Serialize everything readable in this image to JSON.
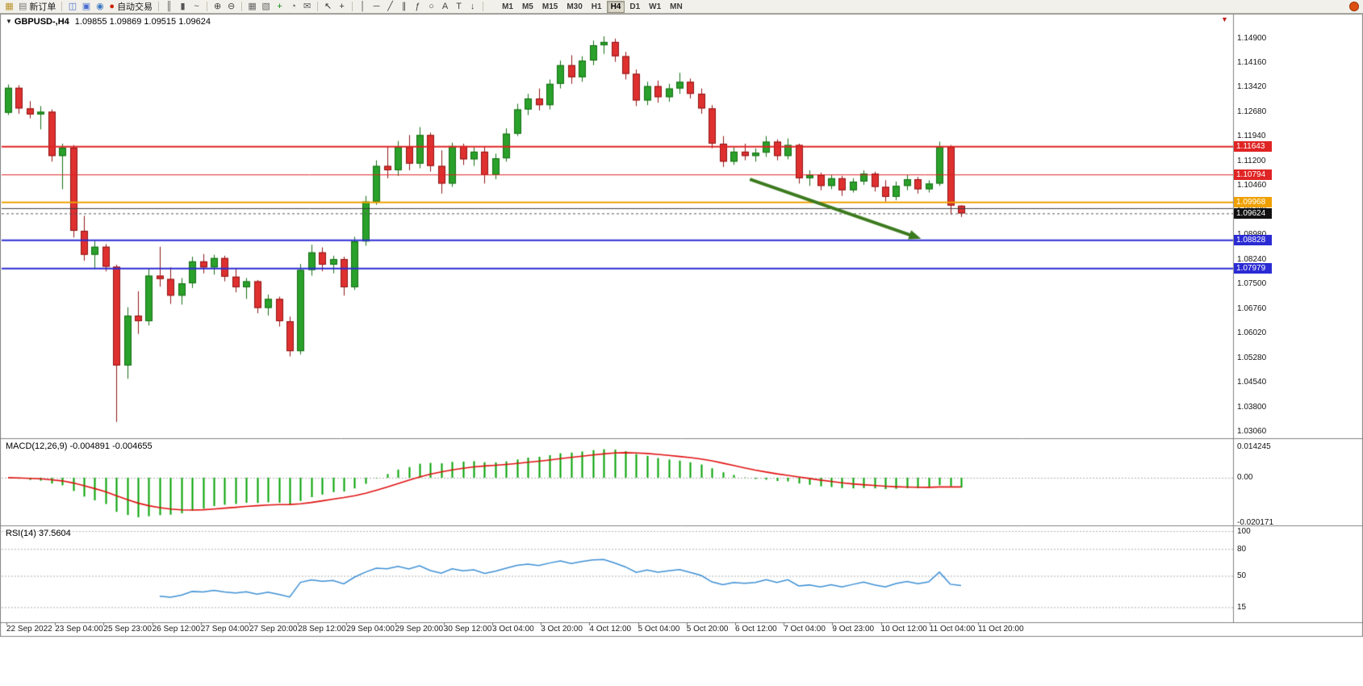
{
  "toolbar": {
    "items": [
      {
        "name": "new-chart-window-icon",
        "glyph": "▦",
        "color": "#b8922a"
      },
      {
        "name": "new-order-button",
        "glyph": "▤",
        "color": "#7a7a7a",
        "label": "新订单"
      },
      {
        "name": "sep"
      },
      {
        "name": "chart-windows-icon",
        "glyph": "◫",
        "color": "#4a6fd0"
      },
      {
        "name": "profiles-icon",
        "glyph": "▣",
        "color": "#4a6fd0"
      },
      {
        "name": "alerts-icon",
        "glyph": "◉",
        "color": "#3a78c0"
      },
      {
        "name": "autotrading-button",
        "glyph": "●",
        "color": "#cc2200",
        "label": "自动交易"
      },
      {
        "name": "sep"
      },
      {
        "name": "bar-chart-icon",
        "glyph": "║",
        "color": "#555555"
      },
      {
        "name": "candlestick-chart-icon",
        "glyph": "▮",
        "color": "#555555"
      },
      {
        "name": "line-chart-icon",
        "glyph": "~",
        "color": "#555555"
      },
      {
        "name": "sep"
      },
      {
        "name": "zoom-in-icon",
        "glyph": "⊕",
        "color": "#444444"
      },
      {
        "name": "zoom-out-icon",
        "glyph": "⊖",
        "color": "#444444"
      },
      {
        "name": "sep"
      },
      {
        "name": "tile-windows-icon",
        "glyph": "▦",
        "color": "#666666"
      },
      {
        "name": "cascade-windows-icon",
        "glyph": "▧",
        "color": "#666666"
      },
      {
        "name": "indicators-icon",
        "glyph": "+",
        "color": "#0a8a0a"
      },
      {
        "name": "periods-icon",
        "glyph": "◔",
        "color": "#555555"
      },
      {
        "name": "templates-icon",
        "glyph": "✉",
        "color": "#555555"
      },
      {
        "name": "sep"
      },
      {
        "name": "cursor-icon",
        "glyph": "↖",
        "color": "#333333"
      },
      {
        "name": "crosshair-icon",
        "glyph": "+",
        "color": "#333333"
      },
      {
        "name": "sep"
      },
      {
        "name": "vertical-line-icon",
        "glyph": "│",
        "color": "#444444"
      },
      {
        "name": "horizontal-line-icon",
        "glyph": "─",
        "color": "#444444"
      },
      {
        "name": "trendline-icon",
        "glyph": "╱",
        "color": "#444444"
      },
      {
        "name": "channel-icon",
        "glyph": "∥",
        "color": "#444444"
      },
      {
        "name": "fibonacci-icon",
        "glyph": "ƒ",
        "color": "#444444"
      },
      {
        "name": "shapes-icon",
        "glyph": "○",
        "color": "#444444"
      },
      {
        "name": "text-icon",
        "glyph": "A",
        "color": "#444444"
      },
      {
        "name": "label-icon",
        "glyph": "T",
        "color": "#444444"
      },
      {
        "name": "arrows-tool-icon",
        "glyph": "↓",
        "color": "#444444"
      },
      {
        "name": "sep"
      }
    ],
    "timeframes": [
      "M1",
      "M5",
      "M15",
      "M30",
      "H1",
      "H4",
      "D1",
      "W1",
      "MN"
    ],
    "active_timeframe": "H4"
  },
  "icons": {
    "symbol_menu": "▼",
    "shift_marker": "▼"
  },
  "main_chart": {
    "symbol": "GBPUSD-,H4",
    "quote": "1.09855 1.09869 1.09515 1.09624",
    "ohlc_current": {
      "open": "1.09855",
      "high": "1.09869",
      "low": "1.09515",
      "close": "1.09624"
    }
  },
  "price_axis": {
    "labels": [
      "1.14900",
      "1.14160",
      "1.13420",
      "1.12680",
      "1.11940",
      "1.11200",
      "1.10460",
      "1.09720",
      "1.08980",
      "1.08240",
      "1.07500",
      "1.06760",
      "1.06020",
      "1.05280",
      "1.04540",
      "1.03800",
      "1.03060"
    ]
  },
  "price_badges": [
    {
      "text": "1.11643",
      "color": "#e02424"
    },
    {
      "text": "1.10794",
      "color": "#e02424"
    },
    {
      "text": "1.09968",
      "color": "#efa000"
    },
    {
      "text": "1.09624",
      "color": "#111111"
    },
    {
      "text": "1.08828",
      "color": "#2b2bd4"
    },
    {
      "text": "1.07979",
      "color": "#2b2bd4"
    }
  ],
  "macd": {
    "title": "MACD(12,26,9) -0.004891 -0.004655",
    "value": "-0.004891",
    "signal_value": "-0.004655",
    "axis_labels": [
      "0.014245",
      "0.00",
      "-0.020171"
    ]
  },
  "rsi": {
    "title": "RSI(14) 37.5604",
    "value": "37.5604",
    "axis_labels": [
      "100",
      "80",
      "50",
      "15"
    ]
  },
  "time_axis": {
    "labels": [
      "22 Sep 2022",
      "23 Sep 04:00",
      "25 Sep 23:00",
      "26 Sep 12:00",
      "27 Sep 04:00",
      "27 Sep 20:00",
      "28 Sep 12:00",
      "29 Sep 04:00",
      "29 Sep 20:00",
      "30 Sep 12:00",
      "3 Oct 04:00",
      "3 Oct 20:00",
      "4 Oct 12:00",
      "5 Oct 04:00",
      "5 Oct 20:00",
      "6 Oct 12:00",
      "7 Oct 04:00",
      "9 Oct 23:00",
      "10 Oct 12:00",
      "11 Oct 04:00",
      "11 Oct 20:00"
    ]
  },
  "chart_data": {
    "type": "candlestick",
    "symbol": "GBPUSD",
    "timeframe": "H4",
    "ylim": [
      1.0306,
      1.149
    ],
    "y_tick_step": 0.0074,
    "up_color": "#2aa12a",
    "down_color": "#df3030",
    "up_border": "#156e15",
    "down_border": "#8f1414",
    "ohlc": [
      [
        1.1265,
        1.135,
        1.1258,
        1.134
      ],
      [
        1.134,
        1.1348,
        1.1262,
        1.1278
      ],
      [
        1.1278,
        1.13,
        1.1248,
        1.126
      ],
      [
        1.126,
        1.1285,
        1.1215,
        1.1268
      ],
      [
        1.1268,
        1.1275,
        1.1118,
        1.1135
      ],
      [
        1.1135,
        1.1172,
        1.1035,
        1.116
      ],
      [
        1.116,
        1.1168,
        1.089,
        1.091
      ],
      [
        1.091,
        1.0955,
        1.082,
        1.0838
      ],
      [
        1.0838,
        1.088,
        1.0795,
        1.0862
      ],
      [
        1.0862,
        1.087,
        1.0788,
        1.0802
      ],
      [
        1.0802,
        1.0808,
        1.0335,
        1.0505
      ],
      [
        1.0505,
        1.068,
        1.0465,
        1.0655
      ],
      [
        1.0655,
        1.0728,
        1.06,
        1.0638
      ],
      [
        1.0638,
        1.0795,
        1.0625,
        1.0775
      ],
      [
        1.0775,
        1.0862,
        1.0742,
        1.0765
      ],
      [
        1.0765,
        1.08,
        1.069,
        1.0715
      ],
      [
        1.0715,
        1.0768,
        1.0688,
        1.0752
      ],
      [
        1.0752,
        1.0832,
        1.0738,
        1.0818
      ],
      [
        1.0818,
        1.084,
        1.0782,
        1.08
      ],
      [
        1.08,
        1.0838,
        1.0778,
        1.0828
      ],
      [
        1.0828,
        1.0835,
        1.0758,
        1.0772
      ],
      [
        1.0772,
        1.0798,
        1.0725,
        1.074
      ],
      [
        1.074,
        1.0768,
        1.0705,
        1.0758
      ],
      [
        1.0758,
        1.0762,
        1.0662,
        1.0678
      ],
      [
        1.0678,
        1.0718,
        1.0655,
        1.0705
      ],
      [
        1.0705,
        1.0712,
        1.0622,
        1.0638
      ],
      [
        1.0638,
        1.0652,
        1.0532,
        1.0548
      ],
      [
        1.0548,
        1.081,
        1.0538,
        1.0792
      ],
      [
        1.0792,
        1.0868,
        1.0775,
        1.0845
      ],
      [
        1.0845,
        1.086,
        1.0788,
        1.0808
      ],
      [
        1.0808,
        1.0835,
        1.0782,
        1.0825
      ],
      [
        1.0825,
        1.0832,
        1.0715,
        1.074
      ],
      [
        1.074,
        1.0892,
        1.0732,
        1.0878
      ],
      [
        1.0878,
        1.1015,
        1.0865,
        1.0998
      ],
      [
        1.0998,
        1.1122,
        1.0988,
        1.1105
      ],
      [
        1.1105,
        1.1165,
        1.1068,
        1.1092
      ],
      [
        1.1092,
        1.118,
        1.1075,
        1.1162
      ],
      [
        1.1162,
        1.1198,
        1.1092,
        1.1112
      ],
      [
        1.1112,
        1.1222,
        1.1098,
        1.1198
      ],
      [
        1.1198,
        1.1205,
        1.1088,
        1.1105
      ],
      [
        1.1105,
        1.1152,
        1.1022,
        1.1052
      ],
      [
        1.1052,
        1.1175,
        1.1042,
        1.1165
      ],
      [
        1.1165,
        1.1172,
        1.1108,
        1.1125
      ],
      [
        1.1125,
        1.1162,
        1.1105,
        1.1148
      ],
      [
        1.1148,
        1.1165,
        1.1052,
        1.1078
      ],
      [
        1.1078,
        1.1142,
        1.1065,
        1.1128
      ],
      [
        1.1128,
        1.1218,
        1.1118,
        1.1202
      ],
      [
        1.1202,
        1.1292,
        1.1195,
        1.1275
      ],
      [
        1.1275,
        1.1322,
        1.1258,
        1.1308
      ],
      [
        1.1308,
        1.1338,
        1.1272,
        1.1288
      ],
      [
        1.1288,
        1.1365,
        1.1275,
        1.1352
      ],
      [
        1.1352,
        1.1422,
        1.1338,
        1.1408
      ],
      [
        1.1408,
        1.1438,
        1.1352,
        1.1372
      ],
      [
        1.1372,
        1.1435,
        1.1358,
        1.1422
      ],
      [
        1.1422,
        1.1482,
        1.1408,
        1.1468
      ],
      [
        1.1468,
        1.1495,
        1.1442,
        1.1478
      ],
      [
        1.1478,
        1.1488,
        1.1418,
        1.1435
      ],
      [
        1.1435,
        1.1448,
        1.1365,
        1.1382
      ],
      [
        1.1382,
        1.1395,
        1.1285,
        1.1302
      ],
      [
        1.1302,
        1.1358,
        1.1288,
        1.1345
      ],
      [
        1.1345,
        1.1362,
        1.1295,
        1.1312
      ],
      [
        1.1312,
        1.1352,
        1.1298,
        1.1338
      ],
      [
        1.1338,
        1.1385,
        1.1322,
        1.1358
      ],
      [
        1.1358,
        1.1368,
        1.1308,
        1.1322
      ],
      [
        1.1322,
        1.1338,
        1.1262,
        1.1278
      ],
      [
        1.1278,
        1.1288,
        1.1158,
        1.1172
      ],
      [
        1.1172,
        1.1195,
        1.1102,
        1.1118
      ],
      [
        1.1118,
        1.1162,
        1.1108,
        1.1148
      ],
      [
        1.1148,
        1.1172,
        1.1122,
        1.1135
      ],
      [
        1.1135,
        1.1158,
        1.1118,
        1.1145
      ],
      [
        1.1145,
        1.1195,
        1.1132,
        1.1178
      ],
      [
        1.1178,
        1.1185,
        1.1122,
        1.1135
      ],
      [
        1.1135,
        1.1188,
        1.1125,
        1.1168
      ],
      [
        1.1168,
        1.1172,
        1.1052,
        1.1068
      ],
      [
        1.1068,
        1.1092,
        1.1045,
        1.1078
      ],
      [
        1.1078,
        1.1085,
        1.1032,
        1.1045
      ],
      [
        1.1045,
        1.1078,
        1.1035,
        1.1068
      ],
      [
        1.1068,
        1.1075,
        1.1015,
        1.1032
      ],
      [
        1.1032,
        1.1068,
        1.1025,
        1.1058
      ],
      [
        1.1058,
        1.1092,
        1.1048,
        1.1082
      ],
      [
        1.1082,
        1.1088,
        1.1028,
        1.1042
      ],
      [
        1.1042,
        1.1062,
        1.0998,
        1.1012
      ],
      [
        1.1012,
        1.1058,
        1.1002,
        1.1045
      ],
      [
        1.1045,
        1.1078,
        1.1032,
        1.1065
      ],
      [
        1.1065,
        1.1072,
        1.1022,
        1.1035
      ],
      [
        1.1035,
        1.1062,
        1.1025,
        1.1052
      ],
      [
        1.1052,
        1.1178,
        1.1045,
        1.1162
      ],
      [
        1.1162,
        1.1168,
        1.0958,
        1.0986
      ],
      [
        1.09855,
        1.09869,
        1.09515,
        1.09624
      ]
    ],
    "overlays": {
      "hlines": [
        {
          "price": 1.11643,
          "color": "#e02424",
          "width": 2,
          "style": "solid"
        },
        {
          "price": 1.10794,
          "color": "#e02424",
          "width": 1,
          "style": "solid"
        },
        {
          "price": 1.09968,
          "color": "#efa000",
          "width": 2,
          "style": "solid"
        },
        {
          "price": 1.0978,
          "color": "#3c3c3c",
          "width": 1,
          "style": "solid"
        },
        {
          "price": 1.08828,
          "color": "#2b2bd4",
          "width": 2,
          "style": "solid"
        },
        {
          "price": 1.07979,
          "color": "#2b2bd4",
          "width": 2,
          "style": "solid"
        }
      ],
      "current_price_line": {
        "price": 1.09624,
        "color": "#555555",
        "style": "dashed"
      },
      "arrow": {
        "from_bar": 68.5,
        "from_price": 1.1065,
        "to_bar": 84.3,
        "to_price": 1.0886,
        "color": "#3c7a1e",
        "width": 4
      }
    },
    "indicators": [
      {
        "type": "macd",
        "fast": 12,
        "slow": 26,
        "signal": 9,
        "current_macd": -0.004891,
        "current_signal": -0.004655,
        "ylim": [
          -0.020171,
          0.014245
        ],
        "histogram_color": "#00a000",
        "signal_color": "#e01010",
        "source": "derived from ohlc closes"
      },
      {
        "type": "rsi",
        "period": 14,
        "current": 37.5604,
        "ylim": [
          0,
          100
        ],
        "levels": [
          100,
          80,
          50,
          15
        ],
        "line_color": "#3d8fd4",
        "source": "derived from ohlc closes"
      }
    ]
  }
}
